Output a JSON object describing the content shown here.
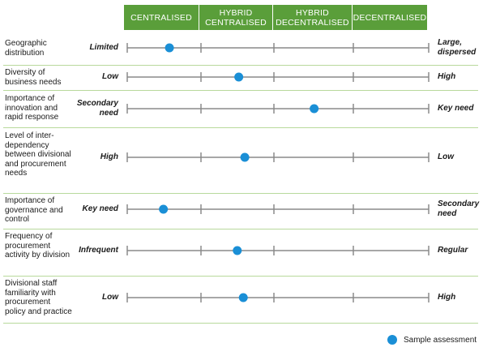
{
  "columns": [
    "CENTRALISED",
    "HYBRID\nCENTRALISED",
    "HYBRID\nDECENTRALISED",
    "DECENTRALISED"
  ],
  "rows": [
    {
      "factor": "Geographic distribution",
      "left": "Limited",
      "right": "Large, dispersed",
      "position": 0.14
    },
    {
      "factor": "Diversity of business needs",
      "left": "Low",
      "right": "High",
      "position": 0.37
    },
    {
      "factor": "Importance of innovation and rapid response",
      "left": "Secondary need",
      "right": "Key need",
      "position": 0.62
    },
    {
      "factor": "Level of inter-dependency between divisional and procurement needs",
      "left": "High",
      "right": "Low",
      "position": 0.39
    },
    {
      "factor": "Importance of governance and control",
      "left": "Key need",
      "right": "Secondary need",
      "position": 0.12
    },
    {
      "factor": "Frequency of procurement activity by division",
      "left": "Infrequent",
      "right": "Regular",
      "position": 0.365
    },
    {
      "factor": "Divisional staff familiarity with procurement policy and practice",
      "left": "Low",
      "right": "High",
      "position": 0.385
    }
  ],
  "legend": {
    "label": "Sample assessment"
  },
  "colors": {
    "header": "#5a9e3a",
    "marker": "#1a8fd6",
    "line": "#8a8a8a",
    "separator": "#b8d99c"
  }
}
